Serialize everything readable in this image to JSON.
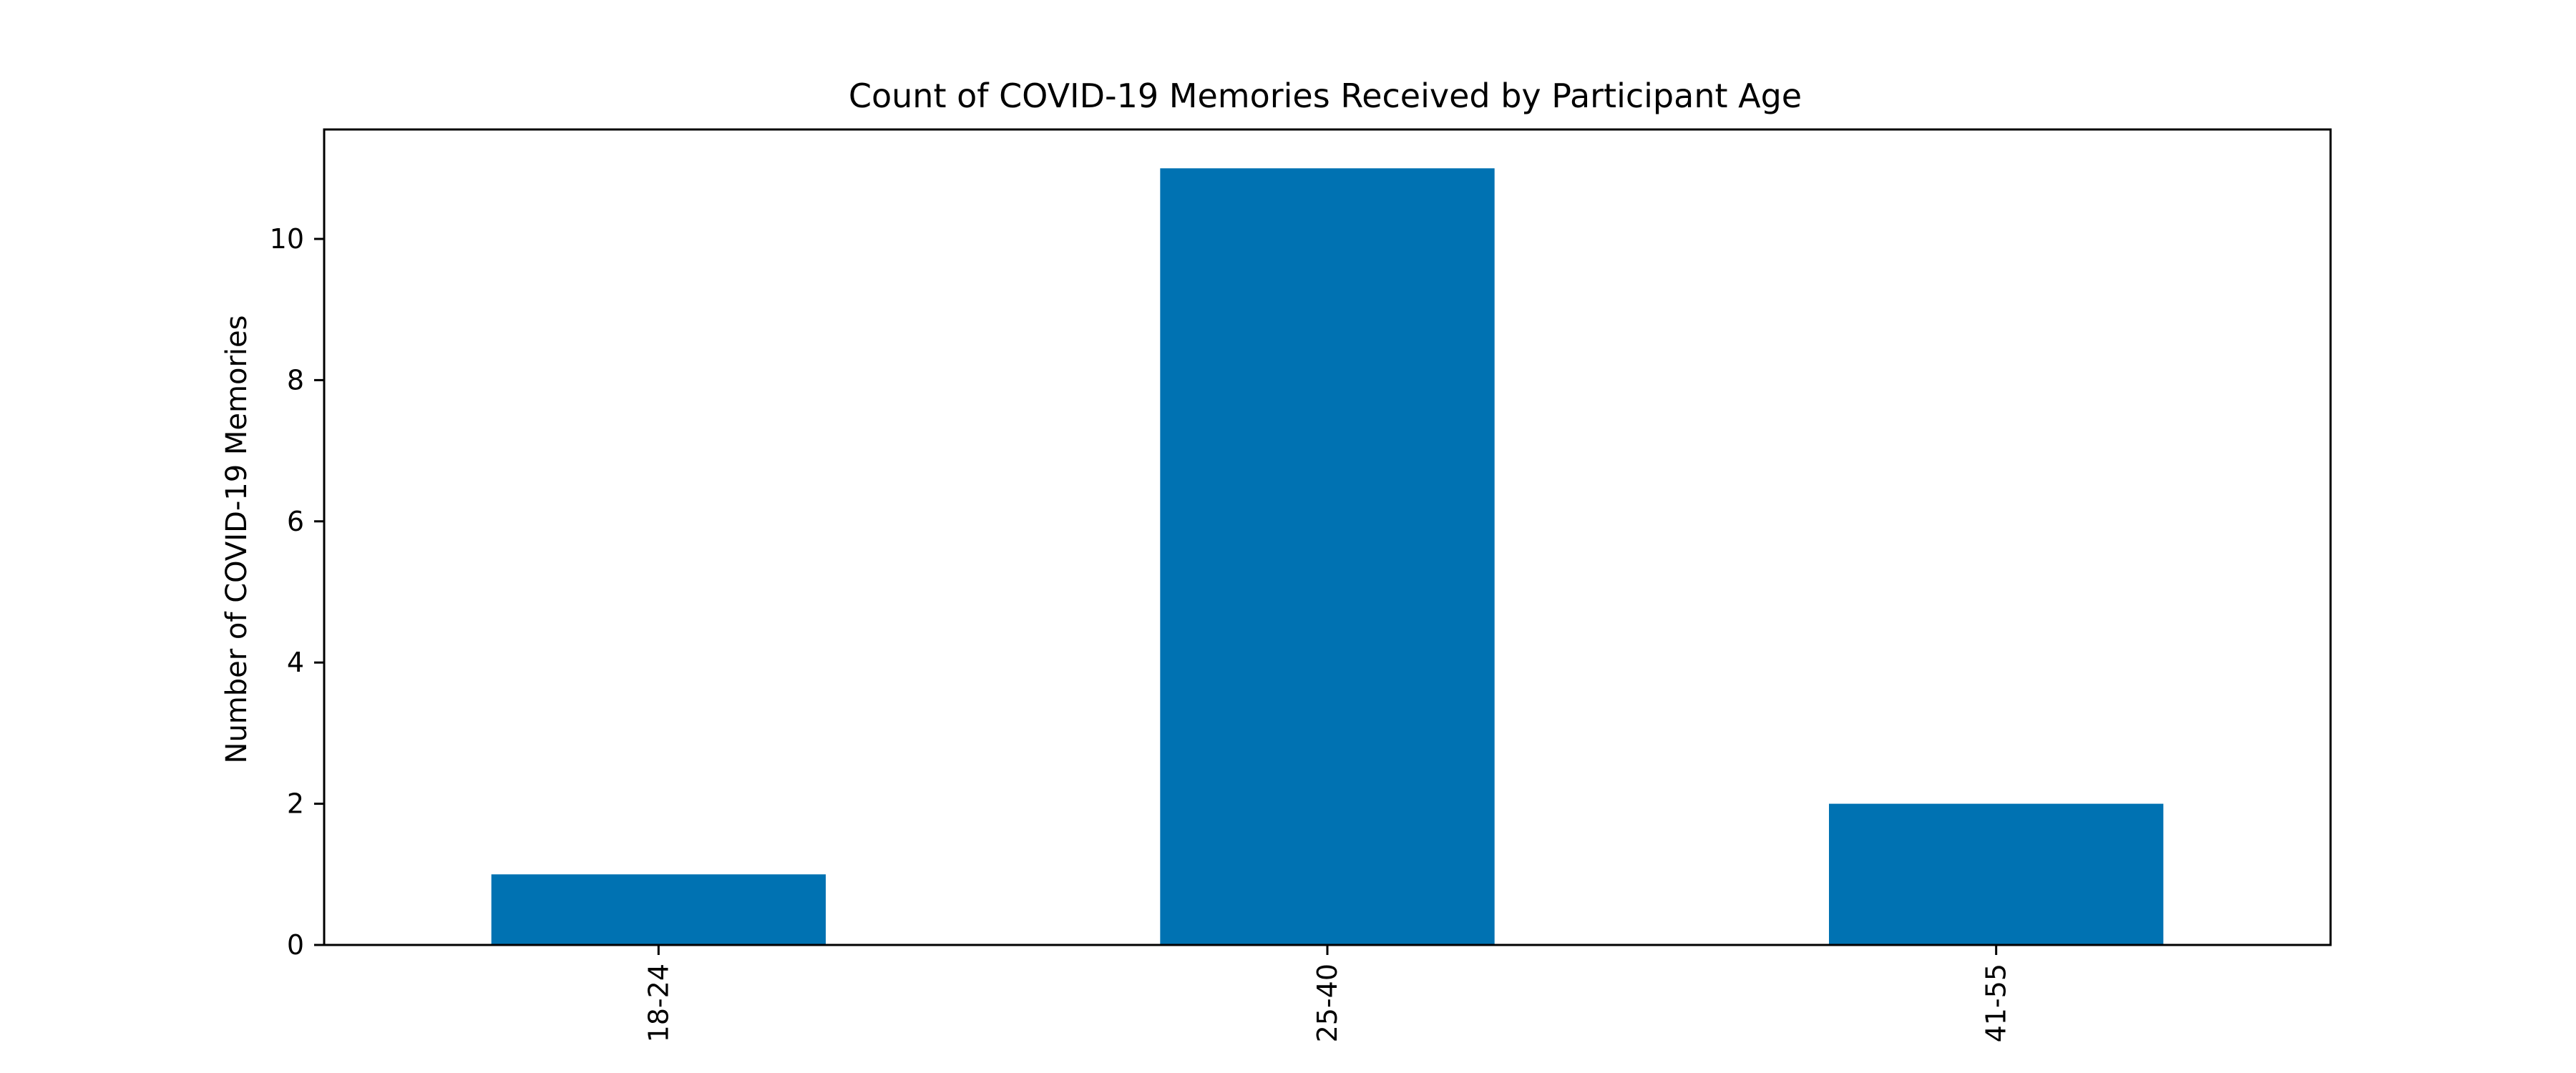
{
  "chart_data": {
    "type": "bar",
    "title": "Count of COVID-19 Memories Received by Participant Age",
    "xlabel": "",
    "ylabel": "Number of COVID-19 Memories",
    "categories": [
      "18-24",
      "25-40",
      "41-55"
    ],
    "values": [
      1,
      11,
      2
    ],
    "ylim": [
      0,
      11.55
    ],
    "yticks": [
      0,
      2,
      4,
      6,
      8,
      10
    ],
    "grid": false,
    "legend": "none",
    "bar_color": "#0072b2"
  }
}
